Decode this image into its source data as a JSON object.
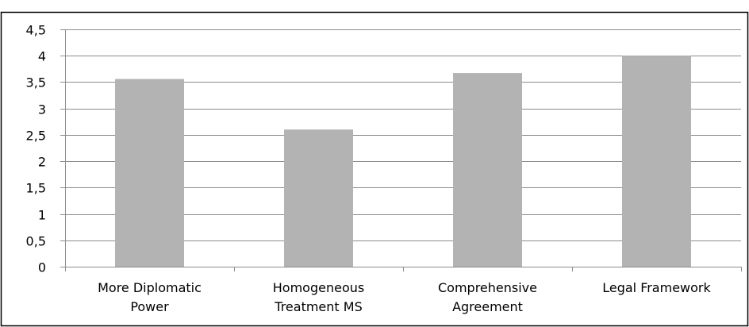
{
  "chart_data": {
    "type": "bar",
    "categories": [
      [
        "More Diplomatic",
        "Power"
      ],
      [
        "Homogeneous",
        "Treatment MS"
      ],
      [
        "Comprehensive",
        "Agreement"
      ],
      [
        "Legal Framework"
      ]
    ],
    "values": [
      3.56,
      2.6,
      3.67,
      4.0
    ],
    "ylim": [
      0,
      4.5
    ],
    "yticks": [
      0,
      0.5,
      1,
      1.5,
      2,
      2.5,
      3,
      3.5,
      4,
      4.5
    ],
    "ytick_labels": [
      "0",
      "0,5",
      "1",
      "1,5",
      "2",
      "2,5",
      "3",
      "3,5",
      "4",
      "4,5"
    ],
    "title": "",
    "xlabel": "",
    "ylabel": "",
    "grid": true,
    "legend": "none",
    "colors": {
      "bar": "#b3b3b3",
      "grid": "#8c8c8c",
      "axis": "#8c8c8c",
      "frame": "#000000"
    }
  }
}
